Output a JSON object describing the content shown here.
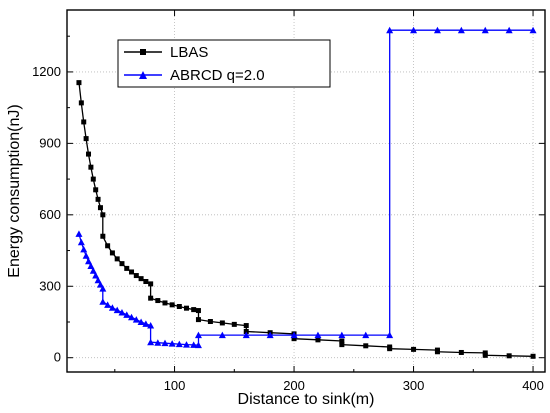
{
  "chart_data": {
    "type": "line",
    "xlabel": "Distance to sink(m)",
    "ylabel": "Energy consumption(nJ)",
    "xlim": [
      10,
      410
    ],
    "ylim": [
      -60,
      1460
    ],
    "xticks": [
      100,
      200,
      300,
      400
    ],
    "yticks": [
      0,
      300,
      600,
      900,
      1200
    ],
    "grid": true,
    "legend_position": "top-left",
    "series": [
      {
        "name": "LBAS",
        "color": "#000000",
        "marker": "square",
        "points": [
          [
            20,
            1155
          ],
          [
            22,
            1070
          ],
          [
            24,
            990
          ],
          [
            26,
            920
          ],
          [
            28,
            855
          ],
          [
            30,
            800
          ],
          [
            32,
            750
          ],
          [
            34,
            705
          ],
          [
            36,
            665
          ],
          [
            38,
            630
          ],
          [
            40,
            600
          ],
          [
            40,
            510
          ],
          [
            44,
            470
          ],
          [
            48,
            440
          ],
          [
            52,
            415
          ],
          [
            56,
            395
          ],
          [
            60,
            375
          ],
          [
            64,
            360
          ],
          [
            68,
            345
          ],
          [
            72,
            332
          ],
          [
            76,
            320
          ],
          [
            80,
            310
          ],
          [
            80,
            250
          ],
          [
            86,
            240
          ],
          [
            92,
            230
          ],
          [
            98,
            222
          ],
          [
            104,
            215
          ],
          [
            110,
            208
          ],
          [
            116,
            202
          ],
          [
            120,
            198
          ],
          [
            120,
            160
          ],
          [
            130,
            152
          ],
          [
            140,
            146
          ],
          [
            150,
            140
          ],
          [
            160,
            135
          ],
          [
            160,
            110
          ],
          [
            180,
            105
          ],
          [
            200,
            100
          ],
          [
            200,
            80
          ],
          [
            220,
            75
          ],
          [
            240,
            70
          ],
          [
            240,
            55
          ],
          [
            260,
            50
          ],
          [
            280,
            45
          ],
          [
            280,
            38
          ],
          [
            300,
            35
          ],
          [
            320,
            32
          ],
          [
            320,
            25
          ],
          [
            340,
            22
          ],
          [
            360,
            20
          ],
          [
            360,
            10
          ],
          [
            380,
            8
          ],
          [
            400,
            6
          ]
        ]
      },
      {
        "name": "ABRCD q=2.0",
        "color": "#0000ff",
        "marker": "triangle",
        "points": [
          [
            20,
            520
          ],
          [
            22,
            485
          ],
          [
            24,
            455
          ],
          [
            26,
            428
          ],
          [
            28,
            405
          ],
          [
            30,
            385
          ],
          [
            32,
            365
          ],
          [
            34,
            345
          ],
          [
            36,
            325
          ],
          [
            38,
            307
          ],
          [
            40,
            290
          ],
          [
            40,
            235
          ],
          [
            44,
            222
          ],
          [
            48,
            210
          ],
          [
            52,
            200
          ],
          [
            56,
            190
          ],
          [
            60,
            180
          ],
          [
            64,
            170
          ],
          [
            68,
            160
          ],
          [
            72,
            150
          ],
          [
            76,
            142
          ],
          [
            80,
            135
          ],
          [
            80,
            65
          ],
          [
            86,
            63
          ],
          [
            92,
            61
          ],
          [
            98,
            59
          ],
          [
            104,
            57
          ],
          [
            110,
            55
          ],
          [
            116,
            54
          ],
          [
            120,
            53
          ],
          [
            120,
            95
          ],
          [
            140,
            95
          ],
          [
            160,
            95
          ],
          [
            180,
            95
          ],
          [
            200,
            95
          ],
          [
            220,
            95
          ],
          [
            240,
            95
          ],
          [
            260,
            95
          ],
          [
            280,
            95
          ],
          [
            280,
            1375
          ],
          [
            300,
            1375
          ],
          [
            320,
            1375
          ],
          [
            340,
            1375
          ],
          [
            360,
            1375
          ],
          [
            380,
            1375
          ],
          [
            400,
            1375
          ]
        ]
      }
    ]
  }
}
